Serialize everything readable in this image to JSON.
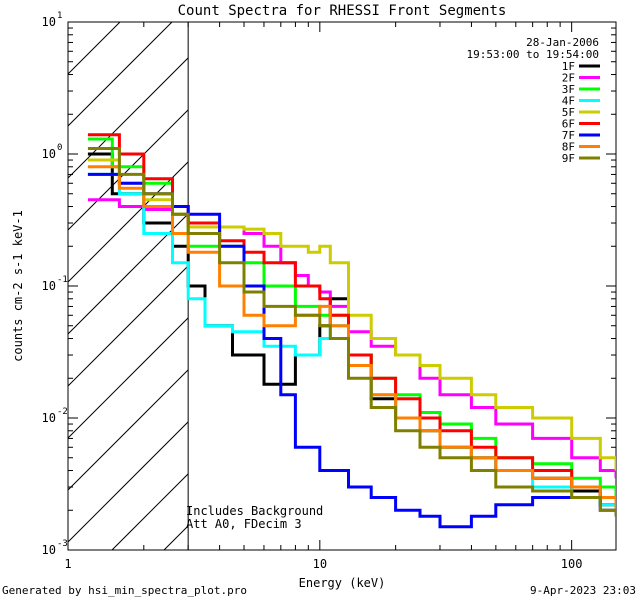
{
  "chart_data": {
    "type": "line",
    "title": "Count Spectra for RHESSI Front Segments",
    "xlabel": "Energy (keV)",
    "ylabel": "counts cm-2 s-1 keV-1",
    "xscale": "log",
    "yscale": "log",
    "xlim": [
      1,
      150
    ],
    "ylim": [
      0.001,
      10
    ],
    "x_ticks": [
      1,
      10,
      100
    ],
    "x_tick_labels": [
      "1",
      "10",
      "100"
    ],
    "y_ticks": [
      0.001,
      0.01,
      0.1,
      1,
      10
    ],
    "y_tick_labels": [
      "10",
      "10",
      "10",
      "10",
      "10"
    ],
    "y_tick_exponents": [
      "-3",
      "-2",
      "-1",
      "0",
      "1"
    ],
    "date": "28-Jan-2006",
    "time_range": "19:53:00 to 19:54:00",
    "annotations": [
      "Includes Background",
      "Att A0, FDecim 3"
    ],
    "attenuator_boundary_keV": 3,
    "hatched_region_keV": [
      1,
      3
    ],
    "series": [
      {
        "name": "1F",
        "color": "#000000",
        "points": [
          [
            1.2,
            1.0
          ],
          [
            1.5,
            0.5
          ],
          [
            2.0,
            0.3
          ],
          [
            2.6,
            0.2
          ],
          [
            3.0,
            0.1
          ],
          [
            3.5,
            0.05
          ],
          [
            4.5,
            0.03
          ],
          [
            6.0,
            0.018
          ],
          [
            8.0,
            0.03
          ],
          [
            10.0,
            0.05
          ],
          [
            11.0,
            0.08
          ],
          [
            13.0,
            0.03
          ],
          [
            16.0,
            0.014
          ],
          [
            20.0,
            0.01
          ],
          [
            25.0,
            0.008
          ],
          [
            30.0,
            0.006
          ],
          [
            40.0,
            0.005
          ],
          [
            50.0,
            0.004
          ],
          [
            70.0,
            0.0035
          ],
          [
            100.0,
            0.0028
          ],
          [
            130.0,
            0.0022
          ],
          [
            150.0,
            0.002
          ]
        ]
      },
      {
        "name": "2F",
        "color": "#ff00ff",
        "points": [
          [
            1.2,
            0.45
          ],
          [
            1.6,
            0.4
          ],
          [
            2.0,
            0.38
          ],
          [
            2.6,
            0.35
          ],
          [
            3.0,
            0.28
          ],
          [
            4.0,
            0.28
          ],
          [
            5.0,
            0.25
          ],
          [
            6.0,
            0.2
          ],
          [
            7.0,
            0.15
          ],
          [
            8.0,
            0.12
          ],
          [
            9.0,
            0.1
          ],
          [
            10.0,
            0.09
          ],
          [
            11.0,
            0.07
          ],
          [
            13.0,
            0.045
          ],
          [
            16.0,
            0.035
          ],
          [
            20.0,
            0.03
          ],
          [
            25.0,
            0.02
          ],
          [
            30.0,
            0.015
          ],
          [
            40.0,
            0.012
          ],
          [
            50.0,
            0.009
          ],
          [
            70.0,
            0.007
          ],
          [
            100.0,
            0.005
          ],
          [
            130.0,
            0.004
          ],
          [
            150.0,
            0.0035
          ]
        ]
      },
      {
        "name": "3F",
        "color": "#00ff00",
        "points": [
          [
            1.2,
            1.3
          ],
          [
            1.5,
            0.8
          ],
          [
            2.0,
            0.6
          ],
          [
            2.6,
            0.35
          ],
          [
            3.0,
            0.2
          ],
          [
            4.0,
            0.2
          ],
          [
            5.0,
            0.15
          ],
          [
            6.0,
            0.1
          ],
          [
            8.0,
            0.07
          ],
          [
            10.0,
            0.06
          ],
          [
            11.0,
            0.06
          ],
          [
            13.0,
            0.03
          ],
          [
            16.0,
            0.02
          ],
          [
            20.0,
            0.015
          ],
          [
            25.0,
            0.011
          ],
          [
            30.0,
            0.009
          ],
          [
            40.0,
            0.007
          ],
          [
            50.0,
            0.005
          ],
          [
            70.0,
            0.0045
          ],
          [
            100.0,
            0.0035
          ],
          [
            130.0,
            0.003
          ],
          [
            150.0,
            0.0025
          ]
        ]
      },
      {
        "name": "4F",
        "color": "#00ffff",
        "points": [
          [
            1.2,
            0.7
          ],
          [
            1.6,
            0.5
          ],
          [
            2.0,
            0.25
          ],
          [
            2.6,
            0.15
          ],
          [
            3.0,
            0.08
          ],
          [
            3.5,
            0.05
          ],
          [
            4.5,
            0.045
          ],
          [
            6.0,
            0.035
          ],
          [
            8.0,
            0.03
          ],
          [
            10.0,
            0.04
          ],
          [
            11.0,
            0.05
          ],
          [
            13.0,
            0.025
          ],
          [
            16.0,
            0.015
          ],
          [
            20.0,
            0.01
          ],
          [
            25.0,
            0.008
          ],
          [
            30.0,
            0.006
          ],
          [
            40.0,
            0.005
          ],
          [
            50.0,
            0.004
          ],
          [
            70.0,
            0.003
          ],
          [
            100.0,
            0.0025
          ],
          [
            130.0,
            0.0022
          ],
          [
            150.0,
            0.002
          ]
        ]
      },
      {
        "name": "5F",
        "color": "#cccc00",
        "points": [
          [
            1.2,
            0.9
          ],
          [
            1.6,
            0.6
          ],
          [
            2.0,
            0.45
          ],
          [
            2.6,
            0.35
          ],
          [
            3.0,
            0.28
          ],
          [
            4.0,
            0.28
          ],
          [
            5.0,
            0.27
          ],
          [
            6.0,
            0.25
          ],
          [
            7.0,
            0.2
          ],
          [
            8.0,
            0.2
          ],
          [
            9.0,
            0.18
          ],
          [
            10.0,
            0.2
          ],
          [
            11.0,
            0.15
          ],
          [
            13.0,
            0.06
          ],
          [
            16.0,
            0.04
          ],
          [
            20.0,
            0.03
          ],
          [
            25.0,
            0.025
          ],
          [
            30.0,
            0.02
          ],
          [
            40.0,
            0.015
          ],
          [
            50.0,
            0.012
          ],
          [
            70.0,
            0.01
          ],
          [
            100.0,
            0.007
          ],
          [
            130.0,
            0.005
          ],
          [
            150.0,
            0.004
          ]
        ]
      },
      {
        "name": "6F",
        "color": "#ff0000",
        "points": [
          [
            1.2,
            1.4
          ],
          [
            1.6,
            1.0
          ],
          [
            2.0,
            0.65
          ],
          [
            2.6,
            0.4
          ],
          [
            3.0,
            0.3
          ],
          [
            4.0,
            0.22
          ],
          [
            5.0,
            0.18
          ],
          [
            6.0,
            0.15
          ],
          [
            8.0,
            0.1
          ],
          [
            10.0,
            0.08
          ],
          [
            11.0,
            0.06
          ],
          [
            13.0,
            0.03
          ],
          [
            16.0,
            0.02
          ],
          [
            20.0,
            0.014
          ],
          [
            25.0,
            0.01
          ],
          [
            30.0,
            0.008
          ],
          [
            40.0,
            0.006
          ],
          [
            50.0,
            0.005
          ],
          [
            70.0,
            0.004
          ],
          [
            100.0,
            0.003
          ],
          [
            130.0,
            0.0025
          ],
          [
            150.0,
            0.002
          ]
        ]
      },
      {
        "name": "7F",
        "color": "#0000ff",
        "points": [
          [
            1.2,
            0.7
          ],
          [
            1.6,
            0.6
          ],
          [
            2.0,
            0.5
          ],
          [
            2.6,
            0.4
          ],
          [
            3.0,
            0.35
          ],
          [
            4.0,
            0.2
          ],
          [
            5.0,
            0.1
          ],
          [
            6.0,
            0.04
          ],
          [
            7.0,
            0.015
          ],
          [
            8.0,
            0.006
          ],
          [
            10.0,
            0.004
          ],
          [
            13.0,
            0.003
          ],
          [
            16.0,
            0.0025
          ],
          [
            20.0,
            0.002
          ],
          [
            25.0,
            0.0018
          ],
          [
            30.0,
            0.0015
          ],
          [
            40.0,
            0.0018
          ],
          [
            50.0,
            0.0022
          ],
          [
            70.0,
            0.0025
          ],
          [
            100.0,
            0.0025
          ],
          [
            130.0,
            0.002
          ],
          [
            150.0,
            0.0018
          ]
        ]
      },
      {
        "name": "8F",
        "color": "#ff8000",
        "points": [
          [
            1.2,
            0.8
          ],
          [
            1.6,
            0.55
          ],
          [
            2.0,
            0.4
          ],
          [
            2.6,
            0.25
          ],
          [
            3.0,
            0.18
          ],
          [
            4.0,
            0.1
          ],
          [
            5.0,
            0.06
          ],
          [
            6.0,
            0.05
          ],
          [
            8.0,
            0.06
          ],
          [
            10.0,
            0.07
          ],
          [
            11.0,
            0.05
          ],
          [
            13.0,
            0.025
          ],
          [
            16.0,
            0.015
          ],
          [
            20.0,
            0.01
          ],
          [
            25.0,
            0.008
          ],
          [
            30.0,
            0.006
          ],
          [
            40.0,
            0.005
          ],
          [
            50.0,
            0.004
          ],
          [
            70.0,
            0.0035
          ],
          [
            100.0,
            0.003
          ],
          [
            130.0,
            0.0025
          ],
          [
            150.0,
            0.002
          ]
        ]
      },
      {
        "name": "9F",
        "color": "#808000",
        "points": [
          [
            1.2,
            1.1
          ],
          [
            1.6,
            0.7
          ],
          [
            2.0,
            0.5
          ],
          [
            2.6,
            0.35
          ],
          [
            3.0,
            0.25
          ],
          [
            4.0,
            0.15
          ],
          [
            5.0,
            0.09
          ],
          [
            6.0,
            0.07
          ],
          [
            8.0,
            0.06
          ],
          [
            10.0,
            0.05
          ],
          [
            11.0,
            0.04
          ],
          [
            13.0,
            0.02
          ],
          [
            16.0,
            0.012
          ],
          [
            20.0,
            0.008
          ],
          [
            25.0,
            0.006
          ],
          [
            30.0,
            0.005
          ],
          [
            40.0,
            0.004
          ],
          [
            50.0,
            0.003
          ],
          [
            70.0,
            0.0028
          ],
          [
            100.0,
            0.0025
          ],
          [
            130.0,
            0.002
          ],
          [
            150.0,
            0.0018
          ]
        ]
      }
    ]
  },
  "footer": {
    "left": "Generated by hsi_min_spectra_plot.pro",
    "right": "9-Apr-2023 23:03"
  }
}
